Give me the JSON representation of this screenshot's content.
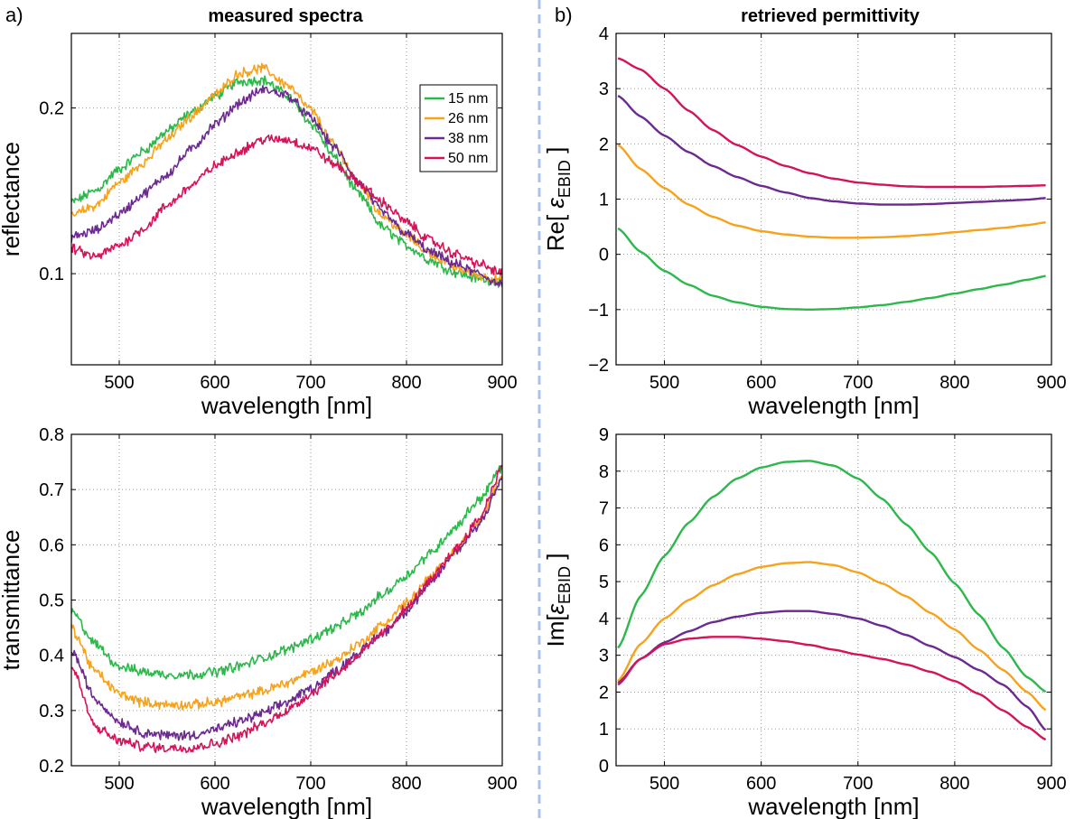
{
  "figure": {
    "panel_labels": [
      "a)",
      "b)"
    ],
    "column_titles": [
      "measured spectra",
      "retrieved permittivity"
    ],
    "colors": {
      "15 nm": "#2db84b",
      "26 nm": "#f7a21b",
      "38 nm": "#6c2a91",
      "50 nm": "#d4145a",
      "divider": "#a9c4e8",
      "grid": "#9a9a9a"
    }
  },
  "chart_data": [
    {
      "type": "line",
      "id": "reflectance",
      "title": "measured spectra",
      "xlabel": "wavelength [nm]",
      "ylabel": "reflectance",
      "xlim": [
        450,
        900
      ],
      "ylim": [
        0.045,
        0.245
      ],
      "log_y": false,
      "xticks": [
        500,
        600,
        700,
        800,
        900
      ],
      "xtick_labels": [
        "500",
        "600",
        "700",
        "800",
        "900"
      ],
      "yticks": [
        0.1,
        0.2
      ],
      "ytick_labels": [
        "0.1",
        "0.2"
      ],
      "grid": true,
      "noisy": true,
      "legend": {
        "position": "top-right",
        "entries": [
          "15 nm",
          "26 nm",
          "38 nm",
          "50 nm"
        ]
      },
      "x": [
        450,
        475,
        500,
        525,
        550,
        575,
        600,
        625,
        650,
        675,
        700,
        725,
        750,
        775,
        800,
        825,
        850,
        875,
        900
      ],
      "series": [
        {
          "name": "15 nm",
          "values": [
            0.143,
            0.15,
            0.163,
            0.174,
            0.186,
            0.197,
            0.207,
            0.216,
            0.217,
            0.208,
            0.191,
            0.17,
            0.148,
            0.128,
            0.117,
            0.108,
            0.101,
            0.097,
            0.095
          ]
        },
        {
          "name": "26 nm",
          "values": [
            0.135,
            0.141,
            0.155,
            0.167,
            0.181,
            0.195,
            0.208,
            0.221,
            0.224,
            0.214,
            0.199,
            0.177,
            0.155,
            0.135,
            0.123,
            0.112,
            0.104,
            0.099,
            0.096
          ]
        },
        {
          "name": "38 nm",
          "values": [
            0.122,
            0.126,
            0.136,
            0.148,
            0.16,
            0.175,
            0.19,
            0.203,
            0.211,
            0.208,
            0.194,
            0.176,
            0.155,
            0.137,
            0.124,
            0.113,
            0.106,
            0.1,
            0.093
          ]
        },
        {
          "name": "50 nm",
          "values": [
            0.115,
            0.11,
            0.117,
            0.127,
            0.141,
            0.153,
            0.165,
            0.174,
            0.181,
            0.181,
            0.176,
            0.166,
            0.155,
            0.143,
            0.131,
            0.12,
            0.112,
            0.106,
            0.1
          ]
        }
      ]
    },
    {
      "type": "line",
      "id": "transmittance",
      "xlabel": "wavelength [nm]",
      "ylabel": "transmittance",
      "xlim": [
        450,
        900
      ],
      "ylim": [
        0.2,
        0.8
      ],
      "xticks": [
        500,
        600,
        700,
        800,
        900
      ],
      "xtick_labels": [
        "500",
        "600",
        "700",
        "800",
        "900"
      ],
      "yticks": [
        0.2,
        0.3,
        0.4,
        0.5,
        0.6,
        0.7,
        0.8
      ],
      "ytick_labels": [
        "0.2",
        "0.3",
        "0.4",
        "0.5",
        "0.6",
        "0.7",
        "0.8"
      ],
      "grid": true,
      "noisy": true,
      "x": [
        450,
        475,
        500,
        525,
        550,
        575,
        600,
        625,
        650,
        675,
        700,
        725,
        750,
        775,
        800,
        825,
        850,
        875,
        900
      ],
      "series": [
        {
          "name": "15 nm",
          "values": [
            0.48,
            0.42,
            0.38,
            0.37,
            0.365,
            0.365,
            0.37,
            0.38,
            0.395,
            0.41,
            0.43,
            0.45,
            0.475,
            0.51,
            0.545,
            0.585,
            0.63,
            0.68,
            0.74
          ]
        },
        {
          "name": "26 nm",
          "values": [
            0.45,
            0.37,
            0.33,
            0.315,
            0.31,
            0.31,
            0.315,
            0.325,
            0.335,
            0.35,
            0.37,
            0.39,
            0.42,
            0.455,
            0.495,
            0.54,
            0.59,
            0.64,
            0.72
          ]
        },
        {
          "name": "38 nm",
          "values": [
            0.41,
            0.32,
            0.28,
            0.26,
            0.255,
            0.255,
            0.265,
            0.28,
            0.295,
            0.315,
            0.34,
            0.37,
            0.405,
            0.44,
            0.48,
            0.53,
            0.585,
            0.635,
            0.72
          ]
        },
        {
          "name": "50 nm",
          "values": [
            0.38,
            0.27,
            0.245,
            0.235,
            0.232,
            0.233,
            0.24,
            0.255,
            0.275,
            0.3,
            0.33,
            0.365,
            0.4,
            0.44,
            0.485,
            0.535,
            0.59,
            0.645,
            0.74
          ]
        }
      ]
    },
    {
      "type": "line",
      "id": "re-eps",
      "title": "retrieved permittivity",
      "xlabel": "wavelength [nm]",
      "ylabel": "Re[ εEBID ]",
      "ylabel_parts": {
        "prefix": "Re[ ",
        "symbol": "ε",
        "subscript": "EBID",
        "suffix": " ]"
      },
      "xlim": [
        450,
        900
      ],
      "ylim": [
        -2,
        4
      ],
      "xticks": [
        500,
        600,
        700,
        800,
        900
      ],
      "xtick_labels": [
        "500",
        "600",
        "700",
        "800",
        "900"
      ],
      "yticks": [
        -2,
        -1,
        0,
        1,
        2,
        3,
        4
      ],
      "ytick_labels": [
        "−2",
        "−1",
        "0",
        "1",
        "2",
        "3",
        "4"
      ],
      "grid": true,
      "noisy": false,
      "x": [
        452,
        475,
        500,
        525,
        550,
        575,
        600,
        625,
        650,
        675,
        700,
        725,
        750,
        775,
        800,
        825,
        850,
        875,
        895
      ],
      "series": [
        {
          "name": "15 nm",
          "values": [
            0.47,
            0.05,
            -0.3,
            -0.55,
            -0.75,
            -0.87,
            -0.95,
            -0.99,
            -1.0,
            -0.99,
            -0.96,
            -0.92,
            -0.86,
            -0.79,
            -0.71,
            -0.63,
            -0.55,
            -0.46,
            -0.39
          ]
        },
        {
          "name": "26 nm",
          "values": [
            1.98,
            1.55,
            1.2,
            0.9,
            0.68,
            0.52,
            0.42,
            0.36,
            0.32,
            0.3,
            0.3,
            0.31,
            0.33,
            0.36,
            0.4,
            0.44,
            0.48,
            0.53,
            0.58
          ]
        },
        {
          "name": "38 nm",
          "values": [
            2.87,
            2.5,
            2.15,
            1.85,
            1.6,
            1.4,
            1.24,
            1.12,
            1.02,
            0.96,
            0.92,
            0.9,
            0.9,
            0.91,
            0.93,
            0.95,
            0.97,
            0.99,
            1.02
          ]
        },
        {
          "name": "50 nm",
          "values": [
            3.55,
            3.35,
            3.0,
            2.6,
            2.25,
            1.98,
            1.77,
            1.6,
            1.47,
            1.37,
            1.3,
            1.26,
            1.23,
            1.22,
            1.22,
            1.22,
            1.23,
            1.24,
            1.25
          ]
        }
      ]
    },
    {
      "type": "line",
      "id": "im-eps",
      "xlabel": "wavelength [nm]",
      "ylabel": "Im[εEBID ]",
      "ylabel_parts": {
        "prefix": "Im[",
        "symbol": "ε",
        "subscript": "EBID",
        "suffix": " ]"
      },
      "xlim": [
        450,
        900
      ],
      "ylim": [
        0,
        9
      ],
      "xticks": [
        500,
        600,
        700,
        800,
        900
      ],
      "xtick_labels": [
        "500",
        "600",
        "700",
        "800",
        "900"
      ],
      "yticks": [
        0,
        1,
        2,
        3,
        4,
        5,
        6,
        7,
        8,
        9
      ],
      "ytick_labels": [
        "0",
        "1",
        "2",
        "3",
        "4",
        "5",
        "6",
        "7",
        "8",
        "9"
      ],
      "grid": true,
      "noisy": false,
      "x": [
        452,
        475,
        500,
        525,
        550,
        575,
        600,
        625,
        650,
        675,
        700,
        725,
        750,
        775,
        800,
        825,
        850,
        875,
        895
      ],
      "series": [
        {
          "name": "15 nm",
          "values": [
            3.2,
            4.6,
            5.7,
            6.6,
            7.3,
            7.8,
            8.1,
            8.25,
            8.28,
            8.15,
            7.8,
            7.25,
            6.55,
            5.8,
            4.95,
            4.1,
            3.2,
            2.4,
            2.0
          ]
        },
        {
          "name": "26 nm",
          "values": [
            2.3,
            3.3,
            4.0,
            4.5,
            4.9,
            5.2,
            5.4,
            5.5,
            5.53,
            5.45,
            5.25,
            4.95,
            4.6,
            4.15,
            3.7,
            3.15,
            2.6,
            2.0,
            1.5
          ]
        },
        {
          "name": "38 nm",
          "values": [
            2.25,
            2.9,
            3.35,
            3.65,
            3.9,
            4.05,
            4.15,
            4.2,
            4.2,
            4.12,
            4.0,
            3.8,
            3.55,
            3.25,
            2.95,
            2.6,
            2.2,
            1.6,
            0.95
          ]
        },
        {
          "name": "50 nm",
          "values": [
            2.2,
            2.9,
            3.3,
            3.45,
            3.5,
            3.5,
            3.45,
            3.38,
            3.28,
            3.15,
            3.02,
            2.9,
            2.75,
            2.55,
            2.3,
            1.95,
            1.5,
            1.05,
            0.7
          ]
        }
      ]
    }
  ]
}
